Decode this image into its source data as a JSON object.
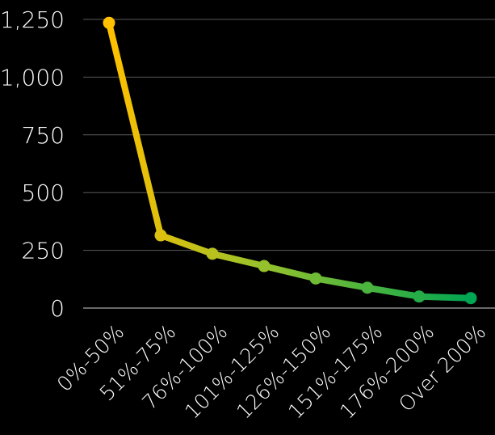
{
  "chart_data": {
    "type": "line",
    "title": "",
    "xlabel": "",
    "ylabel": "",
    "categories": [
      "0%-50%",
      "51%-75%",
      "76%-100%",
      "101%-125%",
      "126%-150%",
      "151%-175%",
      "176%-200%",
      "Over 200%"
    ],
    "values": [
      1235,
      315,
      235,
      182,
      128,
      88,
      50,
      43
    ],
    "ylim": [
      0,
      1250
    ],
    "yticks": [
      0,
      250,
      500,
      750,
      1000,
      1250
    ],
    "ytick_labels": [
      "0",
      "250",
      "500",
      "750",
      "1,000",
      "1,250"
    ],
    "grid": true,
    "legend": "none",
    "colors": {
      "background": "#000000",
      "grid": "#5a5a5a",
      "text": "#ffffff",
      "gradient_start": "#ffc000",
      "gradient_end": "#00a651"
    }
  }
}
